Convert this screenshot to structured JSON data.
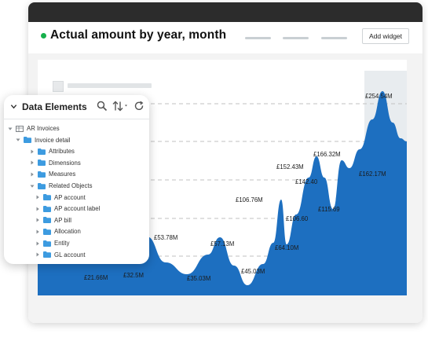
{
  "window": {
    "title": "Actual amount by year, month",
    "add_widget_label": "Add widget",
    "status_color": "#16b04c"
  },
  "chart_data": {
    "type": "area",
    "color": "#1d6fc0",
    "annotations": [
      {
        "label": "£21.66M",
        "value": 21.66
      },
      {
        "label": "£32.5M",
        "value": 32.5
      },
      {
        "label": "£53.78M",
        "value": 53.78
      },
      {
        "label": "£35.03M",
        "value": 35.03
      },
      {
        "label": "£57.13M",
        "value": 57.13
      },
      {
        "label": "£45.03M",
        "value": 45.03
      },
      {
        "label": "£106.76M",
        "value": 106.76
      },
      {
        "label": "£64.10M",
        "value": 64.1
      },
      {
        "label": "£152.43M",
        "value": 152.43
      },
      {
        "label": "£106.60",
        "value": 106.6
      },
      {
        "label": "£142.40",
        "value": 142.4
      },
      {
        "label": "£115.69",
        "value": 115.69
      },
      {
        "label": "£166.32M",
        "value": 166.32
      },
      {
        "label": "£162.17M",
        "value": 162.17
      },
      {
        "label": "£254.54M",
        "value": 254.54
      }
    ]
  },
  "data_elements": {
    "title": "Data Elements",
    "tree": [
      {
        "label": "AR Invoices",
        "level": 0,
        "expanded": true,
        "icon": "table"
      },
      {
        "label": "Invoice detail",
        "level": 1,
        "expanded": true,
        "icon": "folder"
      },
      {
        "label": "Attributes",
        "level": 2,
        "expanded": false,
        "icon": "folder"
      },
      {
        "label": "Dimensions",
        "level": 2,
        "expanded": false,
        "icon": "folder"
      },
      {
        "label": "Measures",
        "level": 2,
        "expanded": false,
        "icon": "folder"
      },
      {
        "label": "Related Objects",
        "level": 2,
        "expanded": true,
        "icon": "folder"
      },
      {
        "label": "AP account",
        "level": 3,
        "expanded": false,
        "icon": "folder"
      },
      {
        "label": "AP account label",
        "level": 3,
        "expanded": false,
        "icon": "folder"
      },
      {
        "label": "AP bill",
        "level": 3,
        "expanded": false,
        "icon": "folder"
      },
      {
        "label": "Allocation",
        "level": 3,
        "expanded": false,
        "icon": "folder"
      },
      {
        "label": "Entity",
        "level": 3,
        "expanded": false,
        "icon": "folder"
      },
      {
        "label": "GL account",
        "level": 3,
        "expanded": false,
        "icon": "folder"
      }
    ]
  }
}
